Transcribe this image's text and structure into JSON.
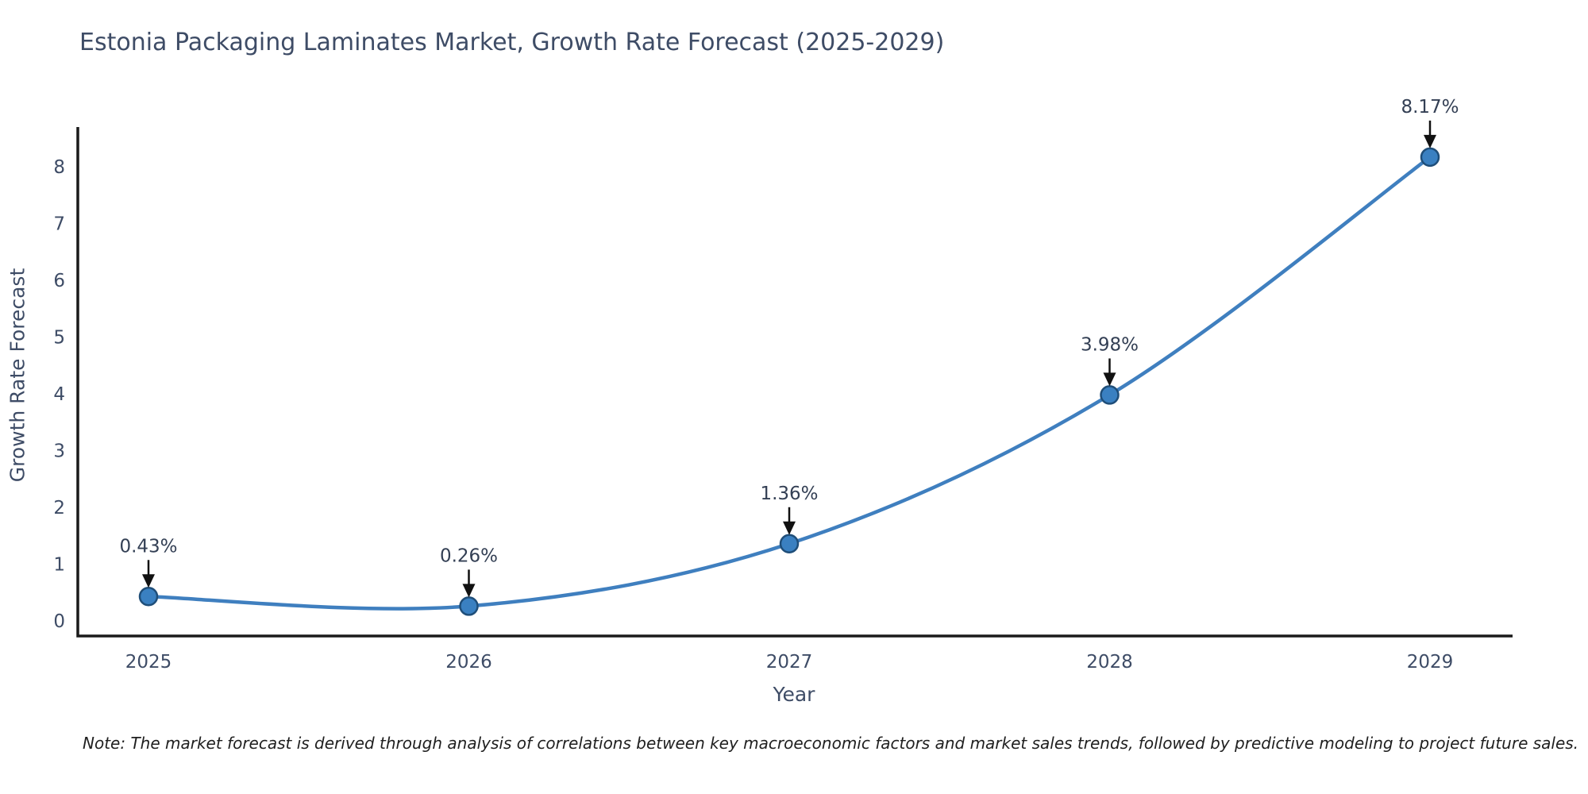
{
  "note": "Note: The market forecast is derived through analysis of correlations between key macroeconomic factors and market sales trends, followed by predictive modeling to project future sales.",
  "chart_data": {
    "type": "line",
    "title": "Estonia Packaging Laminates Market, Growth Rate Forecast (2025-2029)",
    "xlabel": "Year",
    "ylabel": "Growth Rate Forecast",
    "x": [
      2025,
      2026,
      2027,
      2028,
      2029
    ],
    "values": [
      0.43,
      0.26,
      1.36,
      3.98,
      8.17
    ],
    "point_labels": [
      "0.43%",
      "0.26%",
      "1.36%",
      "3.98%",
      "8.17%"
    ],
    "xticks": [
      "2025",
      "2026",
      "2027",
      "2028",
      "2029"
    ],
    "yticks": [
      0,
      1,
      2,
      3,
      4,
      5,
      6,
      7,
      8
    ],
    "ylim": [
      -0.27,
      8.7
    ],
    "grid": false,
    "legend": "none",
    "smooth_curve": true,
    "annotation_arrows": true,
    "colors": {
      "line": "#3f7fbf",
      "marker_fill": "#3a80c1",
      "marker_edge": "#1f4e79",
      "axis_spine": "#1a1a1a",
      "tick_text": "#3e4c66",
      "annotation_text": "#333f54",
      "arrow": "#111111"
    }
  }
}
